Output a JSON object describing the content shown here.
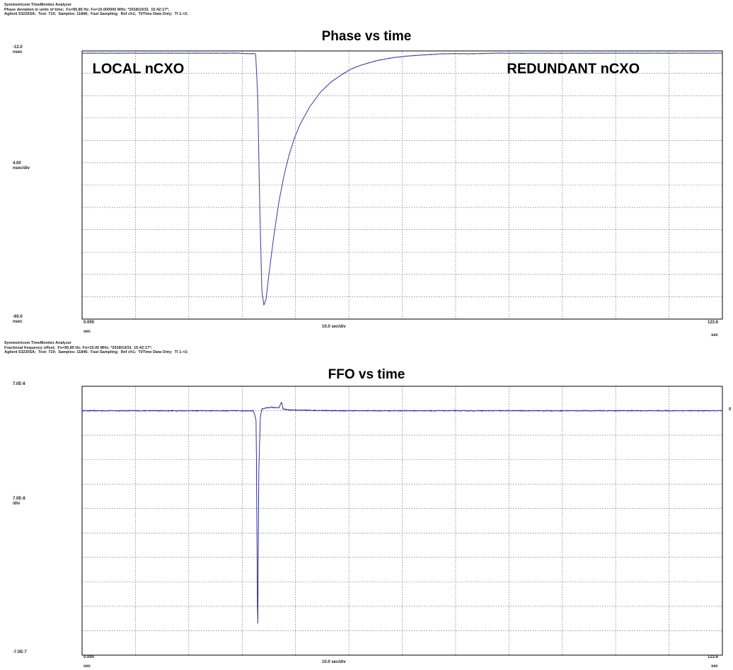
{
  "chart_data": [
    {
      "type": "line",
      "header": [
        "Symmetricom TimeMonitor Analyzer",
        "Phase deviation in units of time;  Fs=95.85 Hz; Fo=10.000000 MHz; *2018/10/31  15:42:17*;",
        "Agilent 53220SA;  Test: 719;  Samples: 11846;  Fast Sampling;  Ref ch1;  TI/Time Data Only;  TI 1->2;"
      ],
      "title": "Phase vs time",
      "ylim": [
        -60.0,
        -12.0
      ],
      "xlim": [
        0.0,
        123.6
      ],
      "y_top_label": "-12.0",
      "y_top_unit": "nsec",
      "y_scale_label": "4.00",
      "y_scale_unit": "nsec/div",
      "y_bottom_label": "-60.0",
      "y_bottom_unit": "nsec",
      "x_left_label": "0.000",
      "x_left_unit": "sec",
      "x_scale_label": "10.0 sec/div",
      "x_right_label": "123.6",
      "x_right_unit": "sec",
      "annotations": [
        {
          "text": "LOCAL nCXO",
          "x": 2.0,
          "y": -15.0
        },
        {
          "text": "REDUNDANT nCXO",
          "x": 82.0,
          "y": -15.0
        }
      ],
      "grid": true,
      "color": "#4a4aaa",
      "series": [
        {
          "x": [
            0,
            10,
            20,
            30,
            33.5,
            33.9,
            34.3,
            34.7,
            35.1,
            35.5,
            36,
            37,
            38,
            39,
            40,
            41,
            42,
            44,
            46,
            48,
            50,
            52,
            54,
            57,
            60,
            63,
            66,
            70,
            75,
            80,
            90,
            100,
            110,
            123.6
          ],
          "y": [
            -12.4,
            -12.4,
            -12.4,
            -12.4,
            -12.5,
            -20.0,
            -40.0,
            -55.0,
            -57.5,
            -56.5,
            -52.5,
            -45.2,
            -39.0,
            -34.2,
            -30.5,
            -27.6,
            -25.3,
            -21.9,
            -19.4,
            -17.6,
            -16.3,
            -15.2,
            -14.5,
            -13.7,
            -13.2,
            -12.9,
            -12.7,
            -12.5,
            -12.5,
            -12.4,
            -12.4,
            -12.4,
            -12.4,
            -12.4
          ]
        }
      ]
    },
    {
      "type": "line",
      "header": [
        "Symmetricom TimeMonitor Analyzer",
        "Fractional frequency offset;  Fs=95.85 Hz; Fo=10.00 MHz; *2018/10/31  15:42:17*;",
        "Agilent 53220SA;  Test: 719;  Samples: 11846;  Fast Sampling;  Ref ch1;  TI/Time Data Only;  TI 1->2;"
      ],
      "title": "FFO vs time",
      "ylim": [
        -7e-07,
        7e-08
      ],
      "xlim": [
        0.0,
        123.6
      ],
      "y_top_label": "7.0E-8",
      "y_scale_label": "7.0E-8",
      "y_scale_unit": "/div",
      "y_bottom_label": "-7.0E-7",
      "y_right_label": "0",
      "x_left_label": "0.000",
      "x_left_unit": "sec",
      "x_scale_label": "10.0 sec/div",
      "x_right_label": "123.6",
      "x_right_unit": "sec",
      "grid": true,
      "color": "#1a1a99",
      "series": [
        {
          "x": [
            0,
            33.0,
            33.3,
            33.6,
            33.9,
            34.1,
            34.4,
            34.7,
            35.5,
            36.5,
            38,
            38.5,
            38.8,
            40,
            50,
            60,
            80,
            100,
            123.6
          ],
          "y": [
            0,
            0,
            -1e-08,
            -3e-08,
            -6.6e-07,
            -1.8e-07,
            -2e-08,
            5e-09,
            8e-09,
            1e-08,
            8e-09,
            2.5e-08,
            5e-09,
            2e-09,
            0,
            0,
            0,
            0,
            0
          ],
          "noise": 1.2e-09
        }
      ]
    }
  ]
}
